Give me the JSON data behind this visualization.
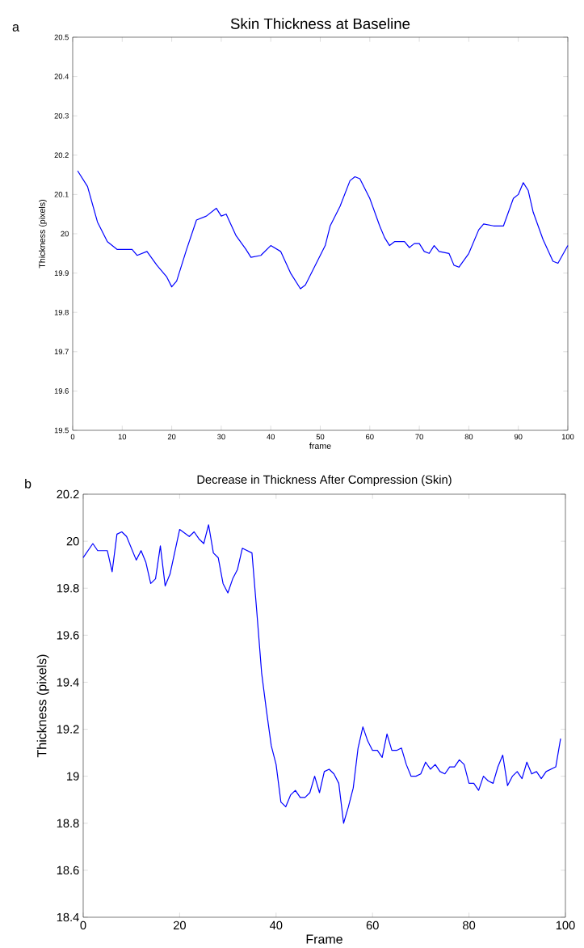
{
  "chart_data": [
    {
      "type": "line",
      "title": "Skin Thickness at Baseline",
      "xlabel": "frame",
      "ylabel": "Thickness (pixels)",
      "annotations": [
        "a"
      ],
      "xlim": [
        0,
        100
      ],
      "xticks": [
        0,
        10,
        20,
        30,
        40,
        50,
        60,
        70,
        80,
        90,
        100
      ],
      "ylim": [
        19.5,
        20.5
      ],
      "yticks": [
        19.5,
        19.6,
        19.7,
        19.8,
        19.9,
        20,
        20.1,
        20.2,
        20.3,
        20.4,
        20.5
      ],
      "grid": false,
      "marker": "none",
      "line_style": "solid",
      "series": [
        {
          "color": "#0000ff",
          "x": [
            1,
            3,
            5,
            7,
            9,
            11,
            12,
            13,
            15,
            17,
            19,
            20,
            21,
            23,
            25,
            27,
            29,
            30,
            31,
            33,
            35,
            36,
            38,
            40,
            42,
            44,
            46,
            47,
            49,
            51,
            52,
            54,
            56,
            57,
            58,
            60,
            62,
            63,
            64,
            65,
            67,
            68,
            69,
            70,
            71,
            72,
            73,
            74,
            76,
            77,
            78,
            80,
            82,
            83,
            85,
            87,
            89,
            90,
            91,
            92,
            93,
            95,
            97,
            98,
            100
          ],
          "values": [
            20.16,
            20.12,
            20.03,
            19.98,
            19.96,
            19.96,
            19.96,
            19.945,
            19.955,
            19.92,
            19.89,
            19.865,
            19.88,
            19.96,
            20.035,
            20.045,
            20.065,
            20.045,
            20.05,
            19.995,
            19.96,
            19.94,
            19.945,
            19.97,
            19.955,
            19.9,
            19.86,
            19.87,
            19.92,
            19.97,
            20.02,
            20.07,
            20.135,
            20.145,
            20.14,
            20.09,
            20.02,
            19.99,
            19.97,
            19.98,
            19.98,
            19.965,
            19.975,
            19.975,
            19.955,
            19.95,
            19.97,
            19.955,
            19.95,
            19.92,
            19.915,
            19.95,
            20.01,
            20.025,
            20.02,
            20.02,
            20.09,
            20.1,
            20.13,
            20.11,
            20.055,
            19.985,
            19.93,
            19.925,
            19.97
          ]
        }
      ]
    },
    {
      "type": "line",
      "title": "Decrease in Thickness After Compression (Skin)",
      "xlabel": "Frame",
      "ylabel": "Thickness (pixels)",
      "annotations": [
        "b"
      ],
      "xlim": [
        0,
        100
      ],
      "xticks": [
        0,
        20,
        40,
        60,
        80,
        100
      ],
      "ylim": [
        18.4,
        20.2
      ],
      "yticks": [
        18.4,
        18.6,
        18.8,
        19,
        19.2,
        19.4,
        19.6,
        19.8,
        20,
        20.2
      ],
      "grid": false,
      "marker": "none",
      "line_style": "solid",
      "series": [
        {
          "color": "#0000ff",
          "x": [
            0,
            2,
            3,
            5,
            6,
            7,
            8,
            9,
            11,
            12,
            13,
            14,
            15,
            16,
            17,
            18,
            20,
            22,
            23,
            24,
            25,
            26,
            27,
            28,
            29,
            30,
            31,
            32,
            33,
            34,
            35,
            36,
            37,
            38,
            39,
            40,
            41,
            42,
            43,
            44,
            45,
            46,
            47,
            48,
            49,
            50,
            51,
            52,
            53,
            54,
            55,
            56,
            57,
            58,
            59,
            60,
            61,
            62,
            63,
            64,
            65,
            66,
            67,
            68,
            69,
            70,
            71,
            72,
            73,
            74,
            75,
            76,
            77,
            78,
            79,
            80,
            81,
            82,
            83,
            84,
            85,
            86,
            87,
            88,
            89,
            90,
            91,
            92,
            93,
            94,
            95,
            96,
            97,
            98,
            99
          ],
          "values": [
            19.93,
            19.99,
            19.96,
            19.96,
            19.87,
            20.03,
            20.04,
            20.02,
            19.92,
            19.96,
            19.91,
            19.82,
            19.84,
            19.98,
            19.81,
            19.86,
            20.05,
            20.02,
            20.04,
            20.01,
            19.99,
            20.07,
            19.95,
            19.93,
            19.82,
            19.78,
            19.84,
            19.88,
            19.97,
            19.96,
            19.95,
            19.7,
            19.44,
            19.28,
            19.13,
            19.05,
            18.89,
            18.87,
            18.92,
            18.94,
            18.91,
            18.91,
            18.93,
            19.0,
            18.93,
            19.02,
            19.03,
            19.01,
            18.97,
            18.8,
            18.87,
            18.95,
            19.12,
            19.21,
            19.15,
            19.11,
            19.11,
            19.08,
            19.18,
            19.11,
            19.11,
            19.12,
            19.05,
            19.0,
            19.0,
            19.01,
            19.06,
            19.03,
            19.05,
            19.02,
            19.01,
            19.04,
            19.04,
            19.07,
            19.05,
            18.97,
            18.97,
            18.94,
            19.0,
            18.98,
            18.97,
            19.04,
            19.09,
            18.96,
            19.0,
            19.02,
            18.99,
            19.06,
            19.01,
            19.02,
            18.99,
            19.02,
            19.03,
            19.04,
            19.16
          ]
        }
      ]
    }
  ]
}
